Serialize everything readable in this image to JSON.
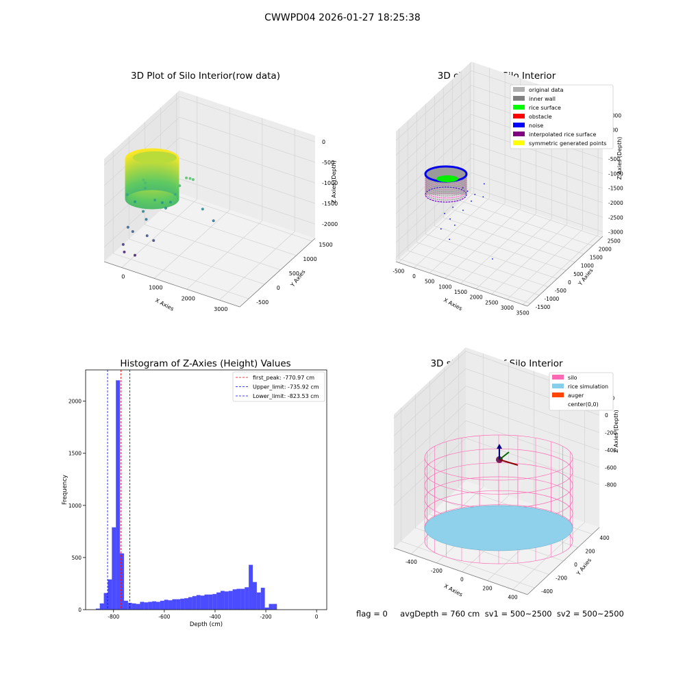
{
  "suptitle": "CWWPD04 2026-01-27 18:25:38",
  "footer": "flag = 0     avgDepth = 760 cm  sv1 = 500~2500  sv2 = 500~2500",
  "colors": {
    "hist": "#0000ff",
    "red": "#ff0000",
    "grid": "#d9d9d9",
    "pane": "#f2f2f2",
    "silo": "#ff69b4",
    "rice": "#87ceeb"
  },
  "chart_data": [
    {
      "type": "scatter",
      "title": "3D Plot of Silo Interior(row data)",
      "xlabel": "X Axies",
      "ylabel": "Y Axies",
      "zlabel": "Z Axies (Depth)",
      "x_ticks": [
        "0",
        "1000",
        "2000",
        "3000"
      ],
      "y_ticks": [
        "-500",
        "0",
        "500",
        "1000",
        "1500"
      ],
      "z_ticks": [
        "0",
        "-500",
        "-1000",
        "-1500",
        "-2000"
      ],
      "xlim": [
        -600,
        3700
      ],
      "ylim": [
        -700,
        1900
      ],
      "zlim": [
        -2300,
        100
      ],
      "colormap": "viridis",
      "points": [
        [
          800,
          450,
          -520
        ],
        [
          850,
          520,
          -600
        ],
        [
          900,
          450,
          -700
        ],
        [
          2600,
          1350,
          -480
        ],
        [
          2700,
          1500,
          -520
        ],
        [
          2800,
          1600,
          -560
        ],
        [
          2400,
          1100,
          -620
        ],
        [
          2300,
          900,
          -780
        ],
        [
          1500,
          400,
          -880
        ],
        [
          2100,
          800,
          -960
        ],
        [
          1700,
          700,
          -1000
        ],
        [
          1900,
          700,
          -1100
        ],
        [
          200,
          0,
          -820
        ],
        [
          500,
          200,
          -1000
        ],
        [
          900,
          300,
          -1200
        ],
        [
          1000,
          400,
          -1400
        ],
        [
          400,
          -200,
          -1500
        ],
        [
          600,
          -100,
          -1600
        ],
        [
          1200,
          200,
          -1700
        ],
        [
          1500,
          300,
          -1800
        ],
        [
          200,
          -300,
          -1900
        ],
        [
          300,
          -350,
          -2050
        ],
        [
          800,
          -200,
          -2100
        ],
        [
          3500,
          1400,
          -1100
        ],
        [
          3900,
          1700,
          -1400
        ]
      ]
    },
    {
      "type": "scatter",
      "title": "3D classify of Silo Interior",
      "xlabel": "X Axies",
      "ylabel": "Y Axies",
      "zlabel": "Z Axies (Depth)",
      "x_ticks": [
        "-500",
        "0",
        "500",
        "1000",
        "1500",
        "2000",
        "2500",
        "3000",
        "3500"
      ],
      "y_ticks": [
        "-1500",
        "-1000",
        "-500",
        "0",
        "500",
        "1000",
        "1500",
        "2000",
        "2500"
      ],
      "z_ticks": [
        "1000",
        "500",
        "0",
        "-500",
        "-1000",
        "-1500",
        "-2000",
        "-2500",
        "-3000"
      ],
      "xlim": [
        -600,
        3700
      ],
      "ylim": [
        -1700,
        2700
      ],
      "zlim": [
        -3300,
        1200
      ],
      "legend": [
        "original data",
        "inner wall",
        "rice surface",
        "obstacle",
        "noise",
        "interpolated rice surface",
        "symmetric generated points"
      ],
      "legend_colors": [
        "#b0b0b0",
        "#808080",
        "#00ff00",
        "#ff0000",
        "#0000ff",
        "#800080",
        "#ffff00"
      ],
      "legend_loc": "upper right",
      "noise_points": [
        [
          1800,
          800,
          -900
        ],
        [
          2000,
          900,
          -1000
        ],
        [
          2300,
          1100,
          -1100
        ],
        [
          2600,
          1400,
          -1200
        ],
        [
          2200,
          900,
          -1300
        ],
        [
          1500,
          300,
          -1500
        ],
        [
          1900,
          600,
          -1600
        ],
        [
          1200,
          0,
          -1700
        ],
        [
          1400,
          200,
          -1900
        ],
        [
          1600,
          300,
          -2100
        ],
        [
          1100,
          -200,
          -2200
        ],
        [
          1500,
          -100,
          -2500
        ],
        [
          3500,
          500,
          -2900
        ],
        [
          2700,
          1300,
          -700
        ]
      ]
    },
    {
      "type": "bar",
      "title": "Histogram of Z-Axies (Height) Values",
      "xlabel": "Depth (cm)",
      "ylabel": "Frequency",
      "xlim": [
        -910,
        40
      ],
      "ylim": [
        0,
        2300
      ],
      "x_ticks": [
        "-800",
        "-600",
        "-400",
        "-200",
        "0"
      ],
      "y_ticks": [
        "0",
        "500",
        "1000",
        "1500",
        "2000"
      ],
      "bin_start": -870,
      "bin_width": 15.86,
      "values": [
        10,
        60,
        160,
        290,
        790,
        2200,
        540,
        85,
        65,
        60,
        55,
        75,
        70,
        75,
        80,
        75,
        85,
        95,
        90,
        100,
        100,
        105,
        110,
        120,
        130,
        140,
        135,
        145,
        145,
        150,
        165,
        180,
        175,
        180,
        195,
        200,
        200,
        215,
        430,
        265,
        165,
        210,
        20,
        55,
        55
      ],
      "lines": [
        {
          "name": "first_peak: -770.97 cm",
          "x": -770.97,
          "color": "#ff0000"
        },
        {
          "name": "Upper_limit: -735.92 cm",
          "x": -735.92,
          "color": "#0000ff"
        },
        {
          "name": "Lower_limit: -823.53 cm",
          "x": -823.53,
          "color": "#0000ff"
        }
      ],
      "legend_loc": "upper right"
    },
    {
      "type": "scatter",
      "title": "3D simulation of Silo Interior",
      "xlabel": "X Axies",
      "ylabel": "Y Axies",
      "zlabel": "Z Axies (Depth)",
      "x_ticks": [
        "-400",
        "-200",
        "0",
        "200",
        "400"
      ],
      "y_ticks": [
        "-400",
        "-200",
        "0",
        "200",
        "400"
      ],
      "z_ticks": [
        "200",
        "0",
        "-200",
        "-400",
        "-600",
        "-800"
      ],
      "xlim": [
        -550,
        550
      ],
      "ylim": [
        -550,
        550
      ],
      "zlim": [
        -950,
        300
      ],
      "legend": [
        "silo",
        "rice simulation",
        "auger",
        "center(0,0)"
      ],
      "legend_colors": [
        "#ff69b4",
        "#87ceeb",
        "#ff4500",
        "#ffffff"
      ],
      "legend_loc": "upper right",
      "silo_radius": 500,
      "silo_top": 0,
      "silo_bottom": -900,
      "rice_level": -760
    }
  ]
}
